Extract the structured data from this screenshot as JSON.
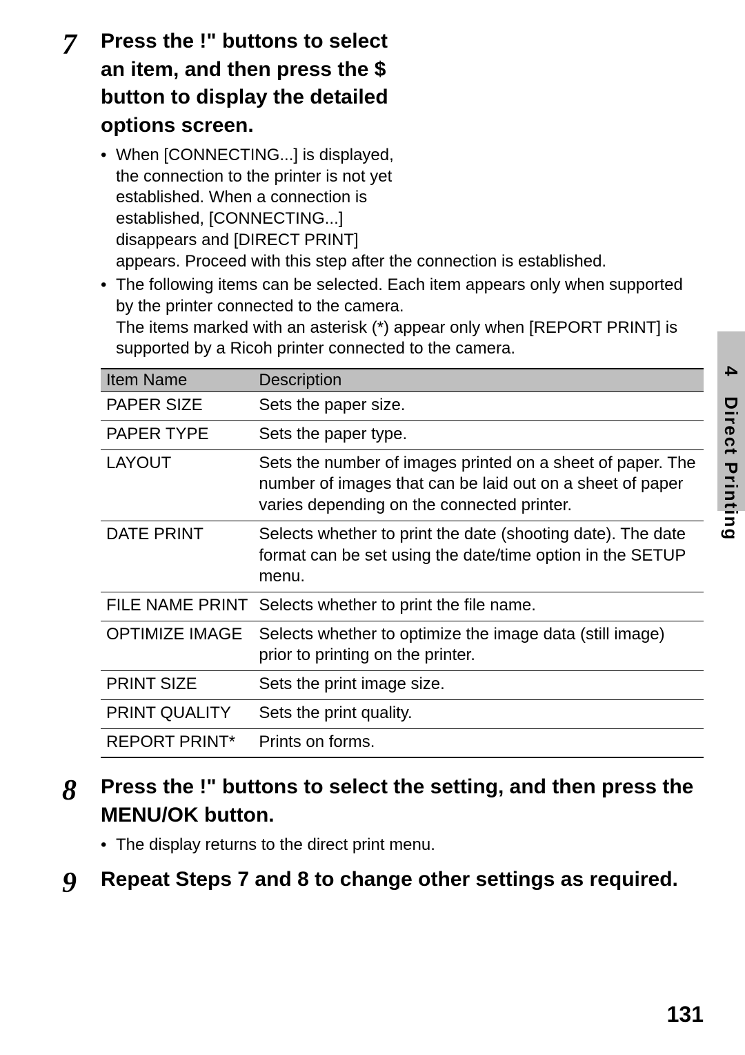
{
  "sidebar": {
    "chapter": "4",
    "label": "Direct Printing"
  },
  "steps": {
    "s7": {
      "num": "7",
      "heading_l1": "Press the !\"     buttons to select",
      "heading_l2": "an item, and then press the $",
      "heading_l3": "button to display the detailed",
      "heading_l4": "options screen.",
      "bullet1_l1": "When [CONNECTING...] is displayed,",
      "bullet1_l2": "the connection to the printer is not yet",
      "bullet1_l3": "established. When a connection is",
      "bullet1_l4": "established, [CONNECTING...]",
      "bullet1_l5": "disappears and [DIRECT PRINT]",
      "bullet1_l6": "appears. Proceed with this step after the connection is established.",
      "bullet2_l1": "The following items can be selected. Each item appears only when supported by the printer connected to the camera.",
      "bullet2_l2": "The items marked with an asterisk (*) appear only when [REPORT PRINT] is supported by a Ricoh printer connected to the camera."
    },
    "s8": {
      "num": "8",
      "heading": "Press the !\"     buttons to select the setting, and then press the MENU/OK button.",
      "bullet1": "The display returns to the direct print menu."
    },
    "s9": {
      "num": "9",
      "heading": "Repeat Steps 7 and 8 to change other settings as required."
    }
  },
  "table": {
    "col1": "Item Name",
    "col2": "Description",
    "rows": [
      {
        "name": "PAPER SIZE",
        "desc": "Sets the paper size."
      },
      {
        "name": "PAPER TYPE",
        "desc": "Sets the paper type."
      },
      {
        "name": "LAYOUT",
        "desc": "Sets the number of images printed on a sheet of paper. The number of images that can be laid out on a sheet of paper varies depending on the connected printer."
      },
      {
        "name": "DATE PRINT",
        "desc": "Selects whether to print the date (shooting date). The date format can be set using the date/time option in the SETUP menu."
      },
      {
        "name": "FILE NAME PRINT",
        "desc": "Selects whether to print the file name."
      },
      {
        "name": "OPTIMIZE IMAGE",
        "desc": "Selects whether to optimize the image data (still image) prior to printing on the printer."
      },
      {
        "name": "PRINT SIZE",
        "desc": "Sets the print image size."
      },
      {
        "name": "PRINT QUALITY",
        "desc": "Sets the print quality."
      },
      {
        "name": "REPORT PRINT*",
        "desc": "Prints on forms."
      }
    ]
  },
  "page_number": "131",
  "colors": {
    "background": "#ffffff",
    "text": "#000000",
    "tab_bg": "#c0c0c0",
    "header_bg": "#bfbfbf",
    "rule": "#000000"
  }
}
